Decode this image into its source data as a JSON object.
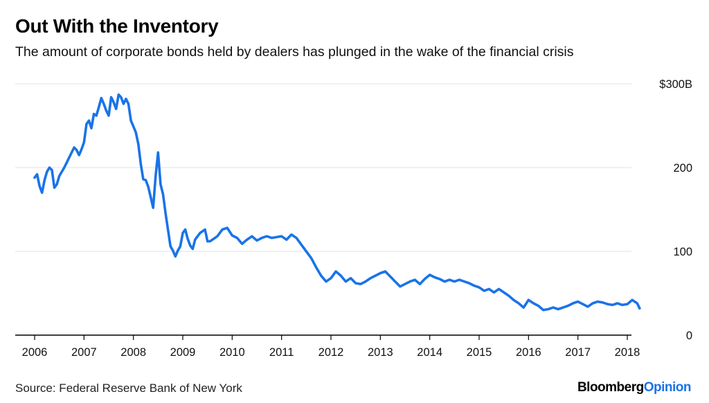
{
  "header": {
    "title": "Out With the Inventory",
    "subtitle": "The amount of corporate bonds held by dealers has plunged in the wake of the financial crisis"
  },
  "footer": {
    "source": "Source: Federal Reserve Bank of New York",
    "brand_primary": "Bloomberg",
    "brand_secondary": "Opinion"
  },
  "colors": {
    "line": "#1a73e8",
    "grid": "#e6e6e6",
    "axis": "#000000",
    "brand_accent": "#1a73e8"
  },
  "chart_data": {
    "type": "line",
    "title": "Out With the Inventory",
    "subtitle": "The amount of corporate bonds held by dealers has plunged in the wake of the financial crisis",
    "xlabel": "",
    "ylabel": "",
    "xlim": [
      2006.0,
      2018.35
    ],
    "ylim": [
      0,
      300
    ],
    "y_ticks": [
      {
        "value": 0,
        "label": "0"
      },
      {
        "value": 100,
        "label": "100"
      },
      {
        "value": 200,
        "label": "200"
      },
      {
        "value": 300,
        "label": "$300B"
      }
    ],
    "x_ticks": [
      {
        "value": 2006,
        "label": "2006"
      },
      {
        "value": 2007,
        "label": "2007"
      },
      {
        "value": 2008,
        "label": "2008"
      },
      {
        "value": 2009,
        "label": "2009"
      },
      {
        "value": 2010,
        "label": "2010"
      },
      {
        "value": 2011,
        "label": "2011"
      },
      {
        "value": 2012,
        "label": "2012"
      },
      {
        "value": 2013,
        "label": "2013"
      },
      {
        "value": 2014,
        "label": "2014"
      },
      {
        "value": 2015,
        "label": "2015"
      },
      {
        "value": 2016,
        "label": "2016"
      },
      {
        "value": 2017,
        "label": "2017"
      },
      {
        "value": 2018,
        "label": "2018"
      }
    ],
    "grid": true,
    "y_axis_position": "right",
    "legend": "none",
    "series": [
      {
        "x": [
          2006.0,
          2006.05,
          2006.1,
          2006.15,
          2006.2,
          2006.25,
          2006.3,
          2006.35,
          2006.4,
          2006.45,
          2006.5,
          2006.55,
          2006.6,
          2006.65,
          2006.7,
          2006.75,
          2006.8,
          2006.85,
          2006.9,
          2006.95,
          2007.0,
          2007.05,
          2007.1,
          2007.15,
          2007.2,
          2007.25,
          2007.3,
          2007.35,
          2007.4,
          2007.45,
          2007.5,
          2007.55,
          2007.6,
          2007.65,
          2007.7,
          2007.75,
          2007.8,
          2007.85,
          2007.9,
          2007.95,
          2008.0,
          2008.05,
          2008.1,
          2008.15,
          2008.2,
          2008.25,
          2008.3,
          2008.35,
          2008.4,
          2008.45,
          2008.5,
          2008.55,
          2008.6,
          2008.65,
          2008.7,
          2008.75,
          2008.8,
          2008.85,
          2008.9,
          2008.95,
          2009.0,
          2009.05,
          2009.1,
          2009.15,
          2009.2,
          2009.25,
          2009.3,
          2009.35,
          2009.4,
          2009.45,
          2009.5,
          2009.55,
          2009.6,
          2009.7,
          2009.8,
          2009.9,
          2010.0,
          2010.1,
          2010.2,
          2010.3,
          2010.4,
          2010.5,
          2010.6,
          2010.7,
          2010.8,
          2010.9,
          2011.0,
          2011.1,
          2011.2,
          2011.3,
          2011.4,
          2011.5,
          2011.6,
          2011.7,
          2011.8,
          2011.9,
          2012.0,
          2012.1,
          2012.2,
          2012.3,
          2012.4,
          2012.5,
          2012.6,
          2012.7,
          2012.8,
          2012.9,
          2013.0,
          2013.1,
          2013.2,
          2013.3,
          2013.4,
          2013.5,
          2013.6,
          2013.7,
          2013.8,
          2013.9,
          2014.0,
          2014.1,
          2014.2,
          2014.3,
          2014.4,
          2014.5,
          2014.6,
          2014.7,
          2014.8,
          2014.9,
          2015.0,
          2015.1,
          2015.2,
          2015.3,
          2015.4,
          2015.5,
          2015.6,
          2015.7,
          2015.8,
          2015.9,
          2016.0,
          2016.1,
          2016.2,
          2016.3,
          2016.4,
          2016.5,
          2016.6,
          2016.7,
          2016.8,
          2016.9,
          2017.0,
          2017.1,
          2017.2,
          2017.3,
          2017.4,
          2017.5,
          2017.6,
          2017.7,
          2017.8,
          2017.9,
          2018.0,
          2018.1,
          2018.2,
          2018.25
        ],
        "y": [
          188,
          192,
          178,
          170,
          185,
          195,
          200,
          197,
          176,
          180,
          190,
          195,
          200,
          206,
          212,
          218,
          224,
          221,
          215,
          222,
          230,
          252,
          256,
          247,
          264,
          262,
          272,
          283,
          276,
          268,
          262,
          284,
          278,
          270,
          287,
          284,
          276,
          282,
          276,
          256,
          249,
          242,
          228,
          204,
          186,
          185,
          177,
          165,
          152,
          190,
          218,
          180,
          168,
          146,
          126,
          106,
          101,
          94,
          101,
          106,
          122,
          126,
          115,
          107,
          103,
          114,
          118,
          122,
          124,
          126,
          112,
          112,
          114,
          118,
          126,
          128,
          119,
          116,
          109,
          114,
          118,
          113,
          116,
          118,
          116,
          117,
          118,
          114,
          120,
          116,
          108,
          100,
          92,
          81,
          71,
          64,
          68,
          76,
          71,
          64,
          68,
          62,
          61,
          64,
          68,
          71,
          74,
          76,
          70,
          64,
          58,
          61,
          64,
          66,
          61,
          67,
          72,
          69,
          67,
          64,
          66,
          64,
          66,
          64,
          62,
          59,
          57,
          53,
          55,
          51,
          55,
          51,
          47,
          42,
          38,
          33,
          42,
          38,
          35,
          30,
          31,
          33,
          31,
          33,
          35,
          38,
          40,
          37,
          34,
          38,
          40,
          39,
          37,
          36,
          38,
          36,
          37,
          42,
          38,
          32
        ]
      }
    ]
  }
}
